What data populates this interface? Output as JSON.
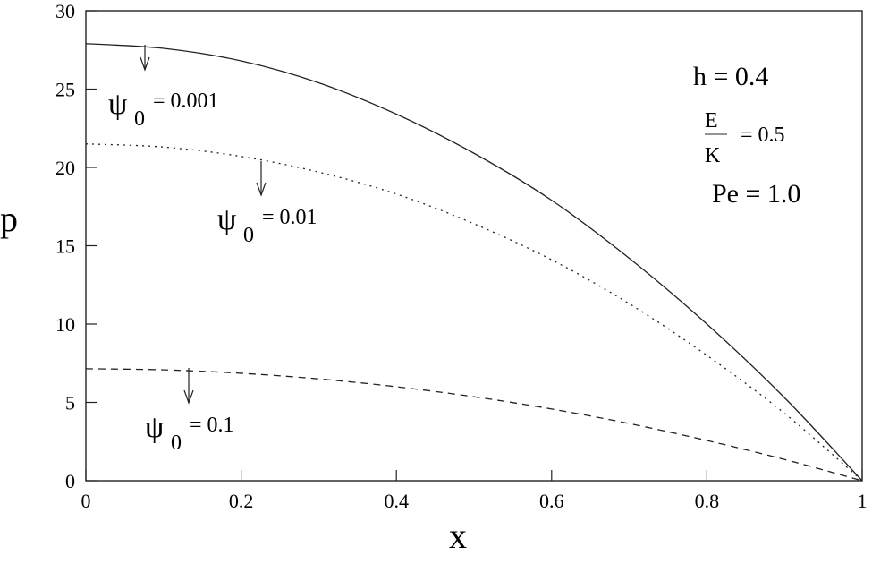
{
  "chart_data": {
    "type": "line",
    "title": "",
    "xlabel": "x",
    "ylabel": "p",
    "xlim": [
      0,
      1
    ],
    "ylim": [
      0,
      30
    ],
    "xticks": [
      "0",
      "0.2",
      "0.4",
      "0.6",
      "0.8",
      "1"
    ],
    "yticks": [
      "0",
      "5",
      "10",
      "15",
      "20",
      "25",
      "30"
    ],
    "grid": false,
    "legend": "inline annotations with arrows",
    "series": [
      {
        "name": "ψ0 = 0.001",
        "style": "solid",
        "x": [
          0,
          0.1,
          0.2,
          0.3,
          0.4,
          0.5,
          0.6,
          0.7,
          0.8,
          0.9,
          1.0
        ],
        "values": [
          27.9,
          27.6,
          26.8,
          25.4,
          23.4,
          20.9,
          17.9,
          14.2,
          10.0,
          5.3,
          0
        ]
      },
      {
        "name": "ψ0 = 0.01",
        "style": "dotted",
        "x": [
          0,
          0.1,
          0.2,
          0.3,
          0.4,
          0.5,
          0.6,
          0.7,
          0.8,
          0.9,
          1.0
        ],
        "values": [
          21.5,
          21.3,
          20.7,
          19.7,
          18.3,
          16.4,
          14.1,
          11.3,
          8.0,
          4.3,
          0
        ]
      },
      {
        "name": "ψ0 = 0.1",
        "style": "dashed",
        "x": [
          0,
          0.1,
          0.2,
          0.3,
          0.4,
          0.5,
          0.6,
          0.7,
          0.8,
          0.9,
          1.0
        ],
        "values": [
          7.15,
          7.08,
          6.86,
          6.5,
          6.0,
          5.36,
          4.58,
          3.65,
          2.57,
          1.36,
          0
        ]
      }
    ],
    "annotations": {
      "h": "h = 0.4",
      "ek_num": "E",
      "ek_den": "K",
      "ek_val": "= 0.5",
      "pe": "Pe = 1.0"
    },
    "labels": [
      {
        "psi": "ψ",
        "sub": "0",
        "val": "= 0.001"
      },
      {
        "psi": "ψ",
        "sub": "0",
        "val": "= 0.01"
      },
      {
        "psi": "ψ",
        "sub": "0",
        "val": "= 0.1"
      }
    ]
  }
}
